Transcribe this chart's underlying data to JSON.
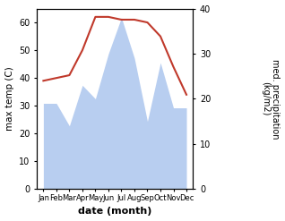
{
  "months": [
    "Jan",
    "Feb",
    "Mar",
    "Apr",
    "May",
    "Jun",
    "Jul",
    "Aug",
    "Sep",
    "Oct",
    "Nov",
    "Dec"
  ],
  "month_indices": [
    1,
    2,
    3,
    4,
    5,
    6,
    7,
    8,
    9,
    10,
    11,
    12
  ],
  "temperature": [
    39,
    40,
    41,
    50,
    62,
    62,
    61,
    61,
    60,
    55,
    44,
    34
  ],
  "precipitation": [
    19,
    19,
    14,
    23,
    20,
    30,
    38,
    29,
    15,
    28,
    18,
    18
  ],
  "temp_color": "#c0392b",
  "precip_fill_color": "#b8cef0",
  "temp_ylim": [
    0,
    65
  ],
  "precip_ylim": [
    0,
    40
  ],
  "temp_yticks": [
    0,
    10,
    20,
    30,
    40,
    50,
    60
  ],
  "precip_yticks": [
    0,
    10,
    20,
    30,
    40
  ],
  "xlabel": "date (month)",
  "ylabel_left": "max temp (C)",
  "ylabel_right": "med. precipitation\n(kg/m2)",
  "background_color": "#ffffff"
}
